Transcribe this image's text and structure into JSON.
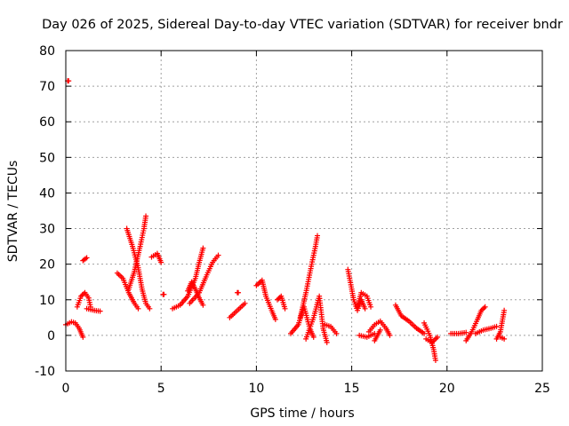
{
  "chart_data": {
    "type": "scatter",
    "title": "Day 026 of 2025, Sidereal Day-to-day VTEC variation (SDTVAR) for receiver bndr",
    "xlabel": "GPS time / hours",
    "ylabel": "SDTVAR / TECUs",
    "xlim": [
      0,
      25
    ],
    "ylim": [
      -10,
      80
    ],
    "xticks": [
      0,
      5,
      10,
      15,
      20,
      25
    ],
    "yticks": [
      -10,
      0,
      10,
      20,
      30,
      40,
      50,
      60,
      70,
      80
    ],
    "grid": true,
    "marker": "plus",
    "color": "#ff0000",
    "segments": [
      [
        [
          0.1,
          71.5
        ]
      ],
      [
        [
          0.0,
          3.0
        ],
        [
          0.3,
          3.8
        ],
        [
          0.5,
          3.5
        ],
        [
          0.7,
          2.0
        ],
        [
          0.9,
          -0.5
        ]
      ],
      [
        [
          0.6,
          8.0
        ],
        [
          0.8,
          11.0
        ],
        [
          1.0,
          12.0
        ],
        [
          1.2,
          10.5
        ],
        [
          1.3,
          8.0
        ]
      ],
      [
        [
          0.9,
          21.0
        ],
        [
          1.1,
          21.8
        ]
      ],
      [
        [
          1.1,
          7.5
        ],
        [
          1.5,
          7.0
        ],
        [
          1.8,
          6.8
        ]
      ],
      [
        [
          2.7,
          17.5
        ],
        [
          3.0,
          16.0
        ],
        [
          3.3,
          12.0
        ],
        [
          3.6,
          9.0
        ],
        [
          3.8,
          7.5
        ]
      ],
      [
        [
          3.2,
          30.0
        ],
        [
          3.5,
          25.0
        ],
        [
          3.8,
          19.0
        ],
        [
          4.0,
          13.0
        ],
        [
          4.2,
          9.0
        ],
        [
          4.4,
          7.5
        ]
      ],
      [
        [
          3.3,
          13.0
        ],
        [
          3.6,
          18.0
        ],
        [
          3.9,
          25.0
        ],
        [
          4.1,
          30.0
        ],
        [
          4.2,
          33.5
        ]
      ],
      [
        [
          4.5,
          22.0
        ],
        [
          4.8,
          23.0
        ],
        [
          5.0,
          20.5
        ]
      ],
      [
        [
          5.1,
          11.5
        ]
      ],
      [
        [
          5.6,
          7.5
        ],
        [
          6.0,
          8.5
        ],
        [
          6.4,
          11.0
        ],
        [
          6.8,
          16.0
        ],
        [
          7.0,
          20.5
        ],
        [
          7.2,
          24.5
        ]
      ],
      [
        [
          6.4,
          12.5
        ],
        [
          6.6,
          15.0
        ],
        [
          6.8,
          13.0
        ],
        [
          7.0,
          10.5
        ],
        [
          7.2,
          8.5
        ]
      ],
      [
        [
          6.5,
          9.0
        ],
        [
          7.0,
          12.0
        ],
        [
          7.4,
          17.0
        ],
        [
          7.7,
          20.5
        ],
        [
          8.0,
          22.5
        ]
      ],
      [
        [
          8.6,
          5.0
        ],
        [
          9.0,
          7.0
        ],
        [
          9.4,
          9.0
        ]
      ],
      [
        [
          9.0,
          12.0
        ]
      ],
      [
        [
          10.0,
          14.0
        ],
        [
          10.3,
          15.5
        ],
        [
          10.5,
          11.0
        ],
        [
          10.8,
          7.0
        ],
        [
          11.0,
          4.5
        ]
      ],
      [
        [
          11.1,
          10.0
        ],
        [
          11.3,
          11.0
        ],
        [
          11.5,
          7.5
        ]
      ],
      [
        [
          11.8,
          0.5
        ],
        [
          12.2,
          3.0
        ],
        [
          12.5,
          8.0
        ],
        [
          12.8,
          2.0
        ],
        [
          13.0,
          -0.5
        ]
      ],
      [
        [
          12.3,
          5.0
        ],
        [
          12.6,
          12.0
        ],
        [
          12.9,
          20.0
        ],
        [
          13.1,
          25.0
        ],
        [
          13.2,
          28.0
        ]
      ],
      [
        [
          12.6,
          -1.0
        ],
        [
          13.0,
          5.0
        ],
        [
          13.3,
          11.0
        ],
        [
          13.5,
          2.0
        ],
        [
          13.7,
          -2.0
        ]
      ],
      [
        [
          13.6,
          3.0
        ],
        [
          13.9,
          2.5
        ],
        [
          14.2,
          0.5
        ]
      ],
      [
        [
          14.8,
          18.5
        ],
        [
          15.0,
          13.0
        ],
        [
          15.1,
          10.0
        ],
        [
          15.3,
          7.0
        ],
        [
          15.5,
          10.0
        ],
        [
          15.7,
          7.5
        ]
      ],
      [
        [
          15.3,
          8.0
        ],
        [
          15.5,
          12.0
        ],
        [
          15.8,
          11.0
        ],
        [
          16.0,
          8.0
        ]
      ],
      [
        [
          15.4,
          0.0
        ],
        [
          15.8,
          -0.5
        ],
        [
          16.2,
          0.5
        ]
      ],
      [
        [
          15.9,
          1.0
        ],
        [
          16.2,
          3.0
        ],
        [
          16.5,
          4.0
        ],
        [
          16.8,
          2.0
        ],
        [
          17.0,
          0.0
        ]
      ],
      [
        [
          16.2,
          -1.5
        ],
        [
          16.5,
          1.5
        ]
      ],
      [
        [
          17.3,
          8.5
        ],
        [
          17.6,
          5.5
        ],
        [
          18.0,
          4.0
        ],
        [
          18.4,
          2.0
        ],
        [
          18.8,
          0.5
        ]
      ],
      [
        [
          18.8,
          3.5
        ],
        [
          19.1,
          0.0
        ],
        [
          19.3,
          -4.0
        ],
        [
          19.4,
          -7.0
        ]
      ],
      [
        [
          18.9,
          -1.0
        ],
        [
          19.2,
          -2.0
        ],
        [
          19.5,
          -0.5
        ]
      ],
      [
        [
          20.2,
          0.5
        ],
        [
          20.6,
          0.5
        ],
        [
          21.0,
          0.8
        ]
      ],
      [
        [
          21.0,
          -1.5
        ],
        [
          21.3,
          1.0
        ],
        [
          21.6,
          4.5
        ],
        [
          21.8,
          7.0
        ],
        [
          22.0,
          8.0
        ]
      ],
      [
        [
          21.5,
          0.5
        ],
        [
          21.9,
          1.5
        ],
        [
          22.3,
          2.0
        ],
        [
          22.6,
          2.5
        ]
      ],
      [
        [
          22.6,
          -1.0
        ],
        [
          22.8,
          1.0
        ],
        [
          22.9,
          4.0
        ],
        [
          23.0,
          7.0
        ]
      ],
      [
        [
          22.8,
          -0.5
        ],
        [
          23.0,
          -1.0
        ]
      ]
    ]
  }
}
